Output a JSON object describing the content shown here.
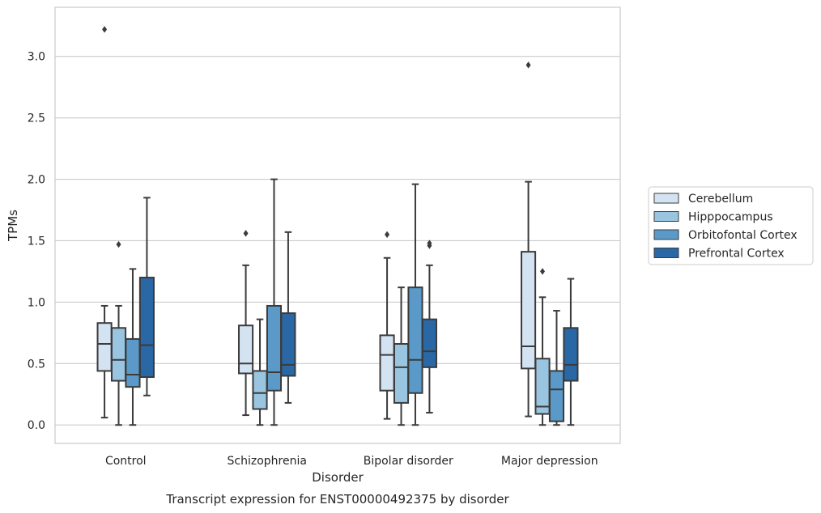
{
  "chart_data": {
    "type": "box",
    "xlabel": "Disorder",
    "ylabel": "TPMs",
    "caption": "Transcript expression for ENST00000492375 by disorder",
    "ylim": [
      -0.15,
      3.4
    ],
    "yticks": [
      "0.0",
      "0.5",
      "1.0",
      "1.5",
      "2.0",
      "2.5",
      "3.0"
    ],
    "grid": "horizontal",
    "legend_position": "right",
    "categories": [
      "Control",
      "Schizophrenia",
      "Bipolar disorder",
      "Major depression"
    ],
    "series": [
      {
        "name": "Cerebellum",
        "color": "#d4e3f2",
        "boxes": [
          {
            "whislo": 0.06,
            "q1": 0.44,
            "med": 0.66,
            "q3": 0.83,
            "whishi": 0.97,
            "fliers": [
              3.22
            ]
          },
          {
            "whislo": 0.08,
            "q1": 0.42,
            "med": 0.5,
            "q3": 0.81,
            "whishi": 1.3,
            "fliers": [
              1.56
            ]
          },
          {
            "whislo": 0.05,
            "q1": 0.28,
            "med": 0.57,
            "q3": 0.73,
            "whishi": 1.36,
            "fliers": [
              1.55
            ]
          },
          {
            "whislo": 0.07,
            "q1": 0.46,
            "med": 0.64,
            "q3": 1.41,
            "whishi": 1.98,
            "fliers": [
              2.93
            ]
          }
        ]
      },
      {
        "name": "Hipppocampus",
        "color": "#9ac5e0",
        "boxes": [
          {
            "whislo": 0.0,
            "q1": 0.36,
            "med": 0.53,
            "q3": 0.79,
            "whishi": 0.97,
            "fliers": [
              1.47
            ]
          },
          {
            "whislo": 0.0,
            "q1": 0.13,
            "med": 0.26,
            "q3": 0.44,
            "whishi": 0.86,
            "fliers": []
          },
          {
            "whislo": 0.0,
            "q1": 0.18,
            "med": 0.47,
            "q3": 0.66,
            "whishi": 1.12,
            "fliers": []
          },
          {
            "whislo": 0.0,
            "q1": 0.09,
            "med": 0.15,
            "q3": 0.54,
            "whishi": 1.04,
            "fliers": [
              1.25
            ]
          }
        ]
      },
      {
        "name": "Orbitofontal Cortex",
        "color": "#5b9ac8",
        "boxes": [
          {
            "whislo": 0.0,
            "q1": 0.31,
            "med": 0.41,
            "q3": 0.7,
            "whishi": 1.27,
            "fliers": []
          },
          {
            "whislo": 0.0,
            "q1": 0.28,
            "med": 0.43,
            "q3": 0.97,
            "whishi": 2.0,
            "fliers": []
          },
          {
            "whislo": 0.0,
            "q1": 0.26,
            "med": 0.53,
            "q3": 1.12,
            "whishi": 1.96,
            "fliers": []
          },
          {
            "whislo": 0.0,
            "q1": 0.03,
            "med": 0.29,
            "q3": 0.44,
            "whishi": 0.93,
            "fliers": []
          }
        ]
      },
      {
        "name": "Prefrontal Cortex",
        "color": "#2a67a5",
        "boxes": [
          {
            "whislo": 0.24,
            "q1": 0.39,
            "med": 0.65,
            "q3": 1.2,
            "whishi": 1.85,
            "fliers": []
          },
          {
            "whislo": 0.18,
            "q1": 0.4,
            "med": 0.49,
            "q3": 0.91,
            "whishi": 1.57,
            "fliers": []
          },
          {
            "whislo": 0.1,
            "q1": 0.47,
            "med": 0.6,
            "q3": 0.86,
            "whishi": 1.3,
            "fliers": [
              1.46,
              1.48
            ]
          },
          {
            "whislo": 0.0,
            "q1": 0.36,
            "med": 0.49,
            "q3": 0.79,
            "whishi": 1.19,
            "fliers": []
          }
        ]
      }
    ]
  }
}
